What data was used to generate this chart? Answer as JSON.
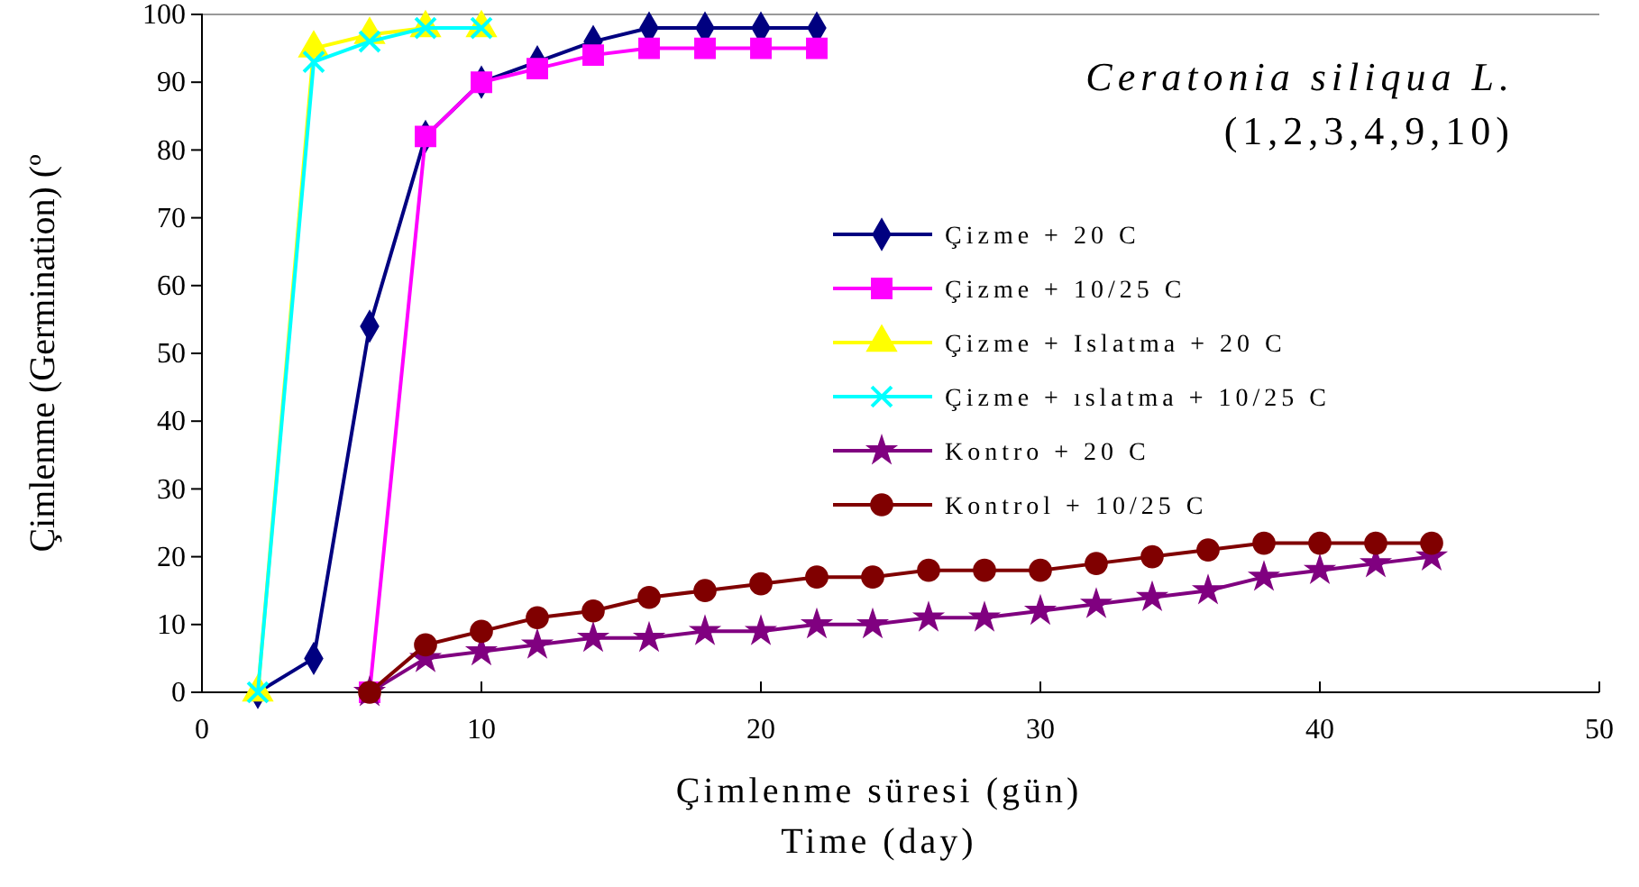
{
  "chart_data": {
    "type": "line",
    "title": "Ceratonia siliqua L.",
    "subtitle": "(1,2,3,4,9,10)",
    "xlabel": "Çimlenme süresi (gün)\nTime (day)",
    "ylabel": "Çimlenme (Germination) (º",
    "xlim": [
      0,
      50
    ],
    "xticks": [
      0,
      10,
      20,
      30,
      40,
      50
    ],
    "ylim": [
      0,
      100
    ],
    "yticks": [
      0,
      10,
      20,
      30,
      40,
      50,
      60,
      70,
      80,
      90,
      100
    ],
    "grid": false,
    "legend": "right",
    "series": [
      {
        "name": "Çizme + 20 C",
        "color": "#000080",
        "marker": "diamond",
        "x": [
          2,
          4,
          6,
          8,
          10,
          12,
          14,
          16,
          18,
          20,
          22
        ],
        "values": [
          0,
          5,
          54,
          82,
          90,
          93,
          96,
          98,
          98,
          98,
          98
        ]
      },
      {
        "name": "Çizme + 10/25 C",
        "color": "#ff00ff",
        "marker": "square",
        "x": [
          6,
          8,
          10,
          12,
          14,
          16,
          18,
          20,
          22
        ],
        "values": [
          0,
          82,
          90,
          92,
          94,
          95,
          95,
          95,
          95
        ]
      },
      {
        "name": "Çizme + Islatma + 20 C",
        "color": "#ffff00",
        "marker": "triangle",
        "x": [
          2,
          4,
          6,
          8,
          10
        ],
        "values": [
          0,
          95,
          97,
          98,
          98
        ]
      },
      {
        "name": "Çizme + ıslatma + 10/25 C",
        "color": "#00ffff",
        "marker": "cross",
        "x": [
          2,
          4,
          6,
          8,
          10
        ],
        "values": [
          0,
          93,
          96,
          98,
          98
        ]
      },
      {
        "name": "Kontro + 20 C",
        "color": "#800080",
        "marker": "star",
        "x": [
          6,
          8,
          10,
          12,
          14,
          16,
          18,
          20,
          22,
          24,
          26,
          28,
          30,
          32,
          34,
          36,
          38,
          40,
          42,
          44
        ],
        "values": [
          0,
          5,
          6,
          7,
          8,
          8,
          9,
          9,
          10,
          10,
          11,
          11,
          12,
          13,
          14,
          15,
          17,
          18,
          19,
          20
        ]
      },
      {
        "name": "Kontrol + 10/25 C",
        "color": "#800000",
        "marker": "circle",
        "x": [
          6,
          8,
          10,
          12,
          14,
          16,
          18,
          20,
          22,
          24,
          26,
          28,
          30,
          32,
          34,
          36,
          38,
          40,
          42,
          44
        ],
        "values": [
          0,
          7,
          9,
          11,
          12,
          14,
          15,
          16,
          17,
          17,
          18,
          18,
          18,
          19,
          20,
          21,
          22,
          22,
          22,
          22
        ]
      }
    ]
  }
}
